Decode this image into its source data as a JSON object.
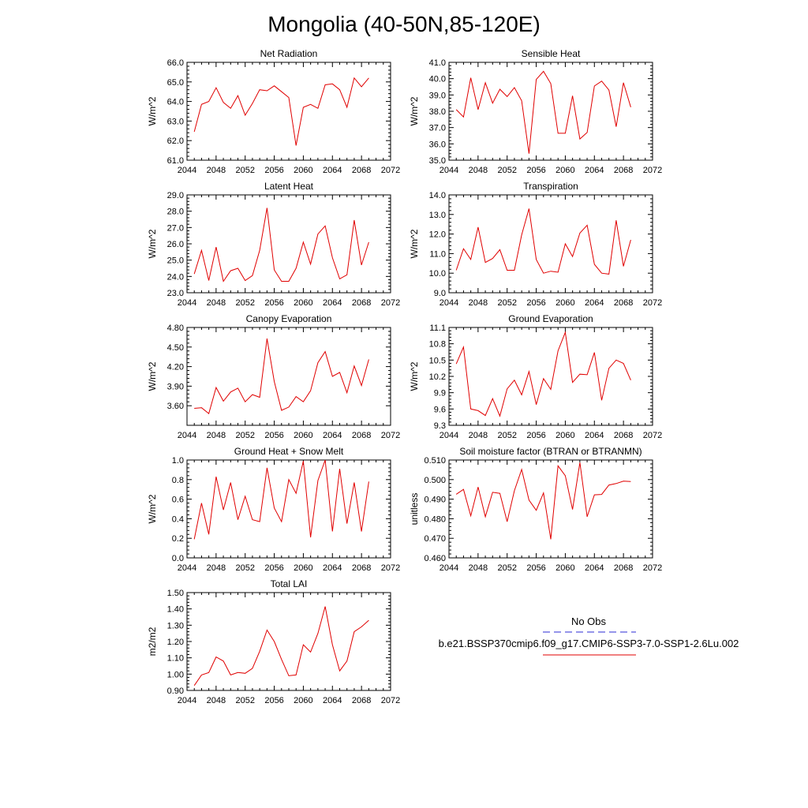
{
  "title": "Mongolia (40-50N,85-120E)",
  "legend": {
    "entries": [
      {
        "label": "No Obs",
        "color": "#2b2bd6",
        "dash": true
      },
      {
        "label": "b.e21.BSSP370cmip6.f09_g17.CMIP6-SSP3-7.0-SSP1-2.6Lu.002",
        "color": "#e00000",
        "dash": false
      }
    ]
  },
  "chart_data": [
    {
      "type": "line",
      "title": "Net Radiation",
      "ylabel": "W/m^2",
      "xlabel": "",
      "xlim": [
        2044,
        2072
      ],
      "ylim": [
        61.0,
        66.0
      ],
      "xticks": [
        2044,
        2048,
        2052,
        2056,
        2060,
        2064,
        2068,
        2072
      ],
      "yticks": [
        "61.0",
        "62.0",
        "63.0",
        "64.0",
        "65.0",
        "66.0"
      ],
      "series": [
        {
          "color": "#e00000",
          "x": [
            2045,
            2046,
            2047,
            2048,
            2049,
            2050,
            2051,
            2052,
            2053,
            2054,
            2055,
            2056,
            2057,
            2058,
            2059,
            2060,
            2061,
            2062,
            2063,
            2064,
            2065,
            2066,
            2067,
            2068,
            2069
          ],
          "y": [
            62.45,
            63.85,
            64.0,
            64.7,
            63.95,
            63.65,
            64.3,
            63.3,
            63.9,
            64.6,
            64.55,
            64.8,
            64.5,
            64.2,
            61.75,
            63.7,
            63.85,
            63.65,
            64.85,
            64.9,
            64.6,
            63.7,
            65.2,
            64.75,
            65.2
          ]
        }
      ]
    },
    {
      "type": "line",
      "title": "Sensible Heat",
      "ylabel": "W/m^2",
      "xlabel": "",
      "xlim": [
        2044,
        2072
      ],
      "ylim": [
        35.0,
        41.0
      ],
      "xticks": [
        2044,
        2048,
        2052,
        2056,
        2060,
        2064,
        2068,
        2072
      ],
      "yticks": [
        "35.0",
        "36.0",
        "37.0",
        "38.0",
        "39.0",
        "40.0",
        "41.0"
      ],
      "series": [
        {
          "color": "#e00000",
          "x": [
            2045,
            2046,
            2047,
            2048,
            2049,
            2050,
            2051,
            2052,
            2053,
            2054,
            2055,
            2056,
            2057,
            2058,
            2059,
            2060,
            2061,
            2062,
            2063,
            2064,
            2065,
            2066,
            2067,
            2068,
            2069
          ],
          "y": [
            38.1,
            37.65,
            40.05,
            38.1,
            39.75,
            38.5,
            39.35,
            38.9,
            39.45,
            38.65,
            35.4,
            39.95,
            40.45,
            39.7,
            36.65,
            36.65,
            38.95,
            36.3,
            36.7,
            39.55,
            39.85,
            39.3,
            37.05,
            39.75,
            38.25
          ]
        }
      ]
    },
    {
      "type": "line",
      "title": "Latent Heat",
      "ylabel": "W/m^2",
      "xlabel": "",
      "xlim": [
        2044,
        2072
      ],
      "ylim": [
        23.0,
        29.0
      ],
      "xticks": [
        2044,
        2048,
        2052,
        2056,
        2060,
        2064,
        2068,
        2072
      ],
      "yticks": [
        "23.0",
        "24.0",
        "25.0",
        "26.0",
        "27.0",
        "28.0",
        "29.0"
      ],
      "series": [
        {
          "color": "#e00000",
          "x": [
            2045,
            2046,
            2047,
            2048,
            2049,
            2050,
            2051,
            2052,
            2053,
            2054,
            2055,
            2056,
            2057,
            2058,
            2059,
            2060,
            2061,
            2062,
            2063,
            2064,
            2065,
            2066,
            2067,
            2068,
            2069
          ],
          "y": [
            24.15,
            25.6,
            23.75,
            25.8,
            23.7,
            24.35,
            24.5,
            23.75,
            24.05,
            25.6,
            28.2,
            24.4,
            23.7,
            23.7,
            24.5,
            26.1,
            24.75,
            26.6,
            27.1,
            25.15,
            23.85,
            24.1,
            27.45,
            24.7,
            26.1
          ]
        }
      ]
    },
    {
      "type": "line",
      "title": "Transpiration",
      "ylabel": "W/m^2",
      "xlabel": "",
      "xlim": [
        2044,
        2072
      ],
      "ylim": [
        9.0,
        14.0
      ],
      "xticks": [
        2044,
        2048,
        2052,
        2056,
        2060,
        2064,
        2068,
        2072
      ],
      "yticks": [
        "9.0",
        "10.0",
        "11.0",
        "12.0",
        "13.0",
        "14.0"
      ],
      "series": [
        {
          "color": "#e00000",
          "x": [
            2045,
            2046,
            2047,
            2048,
            2049,
            2050,
            2051,
            2052,
            2053,
            2054,
            2055,
            2056,
            2057,
            2058,
            2059,
            2060,
            2061,
            2062,
            2063,
            2064,
            2065,
            2066,
            2067,
            2068,
            2069
          ],
          "y": [
            10.15,
            11.25,
            10.7,
            12.35,
            10.55,
            10.75,
            11.2,
            10.15,
            10.15,
            11.95,
            13.3,
            10.7,
            10.0,
            10.1,
            10.05,
            11.5,
            10.85,
            12.05,
            12.45,
            10.45,
            10.0,
            9.95,
            12.7,
            10.35,
            11.7
          ]
        }
      ]
    },
    {
      "type": "line",
      "title": "Canopy Evaporation",
      "ylabel": "W/m^2",
      "xlabel": "",
      "xlim": [
        2044,
        2072
      ],
      "ylim": [
        3.3,
        4.8
      ],
      "xticks": [
        2044,
        2048,
        2052,
        2056,
        2060,
        2064,
        2068,
        2072
      ],
      "yticks": [
        "3.60",
        "3.90",
        "4.20",
        "4.50",
        "4.80"
      ],
      "ytickvals": [
        3.6,
        3.9,
        4.2,
        4.5,
        4.8
      ],
      "series": [
        {
          "color": "#e00000",
          "x": [
            2045,
            2046,
            2047,
            2048,
            2049,
            2050,
            2051,
            2052,
            2053,
            2054,
            2055,
            2056,
            2057,
            2058,
            2059,
            2060,
            2061,
            2062,
            2063,
            2064,
            2065,
            2066,
            2067,
            2068,
            2069
          ],
          "y": [
            3.56,
            3.57,
            3.48,
            3.88,
            3.67,
            3.81,
            3.87,
            3.66,
            3.77,
            3.73,
            4.63,
            3.97,
            3.53,
            3.58,
            3.74,
            3.66,
            3.83,
            4.26,
            4.43,
            4.05,
            4.11,
            3.8,
            4.21,
            3.91,
            4.31
          ]
        }
      ]
    },
    {
      "type": "line",
      "title": "Ground Evaporation",
      "ylabel": "W/m^2",
      "xlabel": "",
      "xlim": [
        2044,
        2072
      ],
      "ylim": [
        9.3,
        11.1
      ],
      "xticks": [
        2044,
        2048,
        2052,
        2056,
        2060,
        2064,
        2068,
        2072
      ],
      "yticks": [
        "9.3",
        "9.6",
        "9.9",
        "10.2",
        "10.5",
        "10.8",
        "11.1"
      ],
      "series": [
        {
          "color": "#e00000",
          "x": [
            2045,
            2046,
            2047,
            2048,
            2049,
            2050,
            2051,
            2052,
            2053,
            2054,
            2055,
            2056,
            2057,
            2058,
            2059,
            2060,
            2061,
            2062,
            2063,
            2064,
            2065,
            2066,
            2067,
            2068,
            2069
          ],
          "y": [
            10.43,
            10.74,
            9.6,
            9.57,
            9.48,
            9.79,
            9.47,
            9.97,
            10.13,
            9.86,
            10.29,
            9.68,
            10.16,
            9.96,
            10.67,
            11.01,
            10.09,
            10.24,
            10.23,
            10.64,
            9.76,
            10.35,
            10.5,
            10.44,
            10.13
          ]
        }
      ]
    },
    {
      "type": "line",
      "title": "Ground Heat + Snow Melt",
      "ylabel": "W/m^2",
      "xlabel": "",
      "xlim": [
        2044,
        2072
      ],
      "ylim": [
        0.0,
        1.0
      ],
      "xticks": [
        2044,
        2048,
        2052,
        2056,
        2060,
        2064,
        2068,
        2072
      ],
      "yticks": [
        "0.0",
        "0.2",
        "0.4",
        "0.6",
        "0.8",
        "1.0"
      ],
      "series": [
        {
          "color": "#e00000",
          "x": [
            2045,
            2046,
            2047,
            2048,
            2049,
            2050,
            2051,
            2052,
            2053,
            2054,
            2055,
            2056,
            2057,
            2058,
            2059,
            2060,
            2061,
            2062,
            2063,
            2064,
            2065,
            2066,
            2067,
            2068,
            2069
          ],
          "y": [
            0.19,
            0.56,
            0.24,
            0.83,
            0.49,
            0.77,
            0.39,
            0.63,
            0.39,
            0.37,
            0.92,
            0.51,
            0.37,
            0.8,
            0.66,
            0.99,
            0.21,
            0.79,
            1.0,
            0.27,
            0.91,
            0.35,
            0.77,
            0.27,
            0.78
          ]
        }
      ]
    },
    {
      "type": "line",
      "title": "Soil moisture factor (BTRAN or BTRANMN)",
      "ylabel": "unitless",
      "xlabel": "",
      "xlim": [
        2044,
        2072
      ],
      "ylim": [
        0.46,
        0.51
      ],
      "xticks": [
        2044,
        2048,
        2052,
        2056,
        2060,
        2064,
        2068,
        2072
      ],
      "yticks": [
        "0.460",
        "0.470",
        "0.480",
        "0.490",
        "0.500",
        "0.510"
      ],
      "series": [
        {
          "color": "#e00000",
          "x": [
            2045,
            2046,
            2047,
            2048,
            2049,
            2050,
            2051,
            2052,
            2053,
            2054,
            2055,
            2056,
            2057,
            2058,
            2059,
            2060,
            2061,
            2062,
            2063,
            2064,
            2065,
            2066,
            2067,
            2068,
            2069
          ],
          "y": [
            0.4925,
            0.495,
            0.4815,
            0.4962,
            0.481,
            0.4935,
            0.493,
            0.4785,
            0.4943,
            0.5052,
            0.4895,
            0.4843,
            0.4932,
            0.4695,
            0.507,
            0.502,
            0.4847,
            0.5087,
            0.481,
            0.4922,
            0.4924,
            0.4972,
            0.498,
            0.4992,
            0.499
          ]
        }
      ]
    },
    {
      "type": "line",
      "title": "Total LAI",
      "ylabel": "m2/m2",
      "xlabel": "",
      "xlim": [
        2044,
        2072
      ],
      "ylim": [
        0.9,
        1.5
      ],
      "xticks": [
        2044,
        2048,
        2052,
        2056,
        2060,
        2064,
        2068,
        2072
      ],
      "yticks": [
        "0.90",
        "1.00",
        "1.10",
        "1.20",
        "1.30",
        "1.40",
        "1.50"
      ],
      "series": [
        {
          "color": "#e00000",
          "x": [
            2045,
            2046,
            2047,
            2048,
            2049,
            2050,
            2051,
            2052,
            2053,
            2054,
            2055,
            2056,
            2057,
            2058,
            2059,
            2060,
            2061,
            2062,
            2063,
            2064,
            2065,
            2066,
            2067,
            2068,
            2069
          ],
          "y": [
            0.93,
            0.995,
            1.01,
            1.105,
            1.08,
            0.995,
            1.01,
            1.005,
            1.035,
            1.14,
            1.27,
            1.2,
            1.09,
            0.99,
            0.995,
            1.18,
            1.135,
            1.25,
            1.415,
            1.18,
            1.02,
            1.08,
            1.26,
            1.29,
            1.33
          ]
        }
      ]
    }
  ]
}
